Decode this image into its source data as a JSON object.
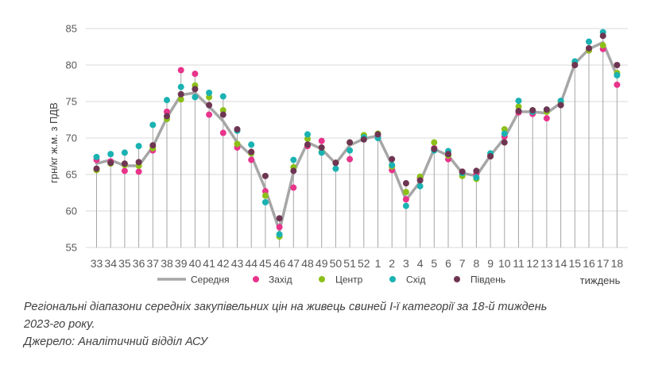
{
  "chart_data": {
    "type": "line",
    "title": "",
    "ylabel": "грн/кг ж.м. з ПДВ",
    "xlabel": "тиждень",
    "ylim": [
      55,
      85
    ],
    "yticks": [
      55,
      60,
      65,
      70,
      75,
      80,
      85
    ],
    "categories": [
      "33",
      "34",
      "35",
      "36",
      "37",
      "38",
      "39",
      "40",
      "41",
      "42",
      "43",
      "44",
      "45",
      "46",
      "47",
      "48",
      "49",
      "50",
      "51",
      "52",
      "1",
      "2",
      "3",
      "4",
      "5",
      "6",
      "7",
      "8",
      "9",
      "10",
      "11",
      "12",
      "13",
      "14",
      "15",
      "16",
      "17",
      "18"
    ],
    "series": [
      {
        "name": "Середня",
        "kind": "line",
        "color": "#a6a6a6",
        "values": [
          66.5,
          67.0,
          66.2,
          66.2,
          68.8,
          72.8,
          75.9,
          76.2,
          74.3,
          72.3,
          69.4,
          67.6,
          63.0,
          57.3,
          65.3,
          69.4,
          68.5,
          66.5,
          69.0,
          69.9,
          70.3,
          66.3,
          61.5,
          64.0,
          68.5,
          67.6,
          65.2,
          64.8,
          67.6,
          70.0,
          73.6,
          73.6,
          73.4,
          74.8,
          80.2,
          82.2,
          83.1,
          78.5
        ]
      },
      {
        "name": "Захід",
        "kind": "dots",
        "color": "#e8348b",
        "values": [
          67.0,
          66.8,
          65.5,
          65.4,
          68.3,
          73.6,
          79.3,
          78.8,
          73.2,
          70.7,
          68.7,
          67.0,
          62.7,
          57.8,
          63.2,
          68.9,
          69.6,
          66.6,
          67.1,
          69.9,
          70.2,
          65.6,
          61.6,
          64.5,
          68.6,
          67.1,
          65.3,
          65.1,
          67.5,
          70.2,
          73.5,
          73.3,
          72.7,
          74.6,
          80.0,
          82.0,
          82.2,
          77.3
        ]
      },
      {
        "name": "Центр",
        "kind": "dots",
        "color": "#8cc019",
        "values": [
          65.6,
          66.5,
          66.3,
          66.2,
          68.6,
          72.6,
          75.3,
          77.2,
          75.6,
          73.8,
          69.2,
          67.9,
          62.1,
          56.5,
          66.0,
          69.9,
          68.1,
          66.6,
          69.4,
          70.4,
          70.6,
          66.1,
          62.6,
          64.7,
          69.4,
          67.6,
          64.8,
          64.4,
          67.7,
          71.2,
          74.3,
          73.8,
          73.6,
          74.9,
          80.3,
          82.0,
          82.7,
          78.9
        ]
      },
      {
        "name": "Схід",
        "kind": "dots",
        "color": "#1ab2b2",
        "values": [
          67.4,
          67.8,
          68.0,
          68.9,
          71.8,
          75.2,
          77.0,
          75.6,
          76.2,
          75.7,
          71.0,
          69.1,
          61.2,
          56.8,
          67.0,
          70.5,
          68.0,
          65.8,
          68.3,
          70.1,
          70.0,
          66.3,
          60.7,
          63.4,
          68.3,
          68.2,
          65.2,
          64.6,
          67.9,
          70.6,
          75.1,
          73.6,
          73.9,
          75.1,
          80.5,
          83.2,
          84.5,
          78.6
        ]
      },
      {
        "name": "Південь",
        "kind": "dots",
        "color": "#6e3552",
        "values": [
          65.8,
          66.6,
          66.5,
          66.7,
          69.0,
          73.0,
          76.0,
          76.7,
          74.5,
          73.2,
          71.2,
          68.1,
          64.8,
          59.0,
          65.5,
          69.1,
          68.7,
          66.6,
          69.4,
          69.8,
          70.5,
          67.1,
          63.8,
          64.2,
          68.5,
          67.8,
          65.4,
          65.5,
          67.5,
          69.4,
          73.7,
          73.8,
          73.9,
          74.5,
          80.0,
          82.3,
          84.0,
          80.0
        ]
      }
    ],
    "grid": true,
    "legend_position": "bottom"
  },
  "caption": {
    "line1": "Регіональні діапазони середніх закупівельних цін на живець свиней І-ї категорії за 18-й тиждень",
    "line2": "2023-го року.",
    "line3": "Джерело: Аналітичний відділ АСУ"
  }
}
